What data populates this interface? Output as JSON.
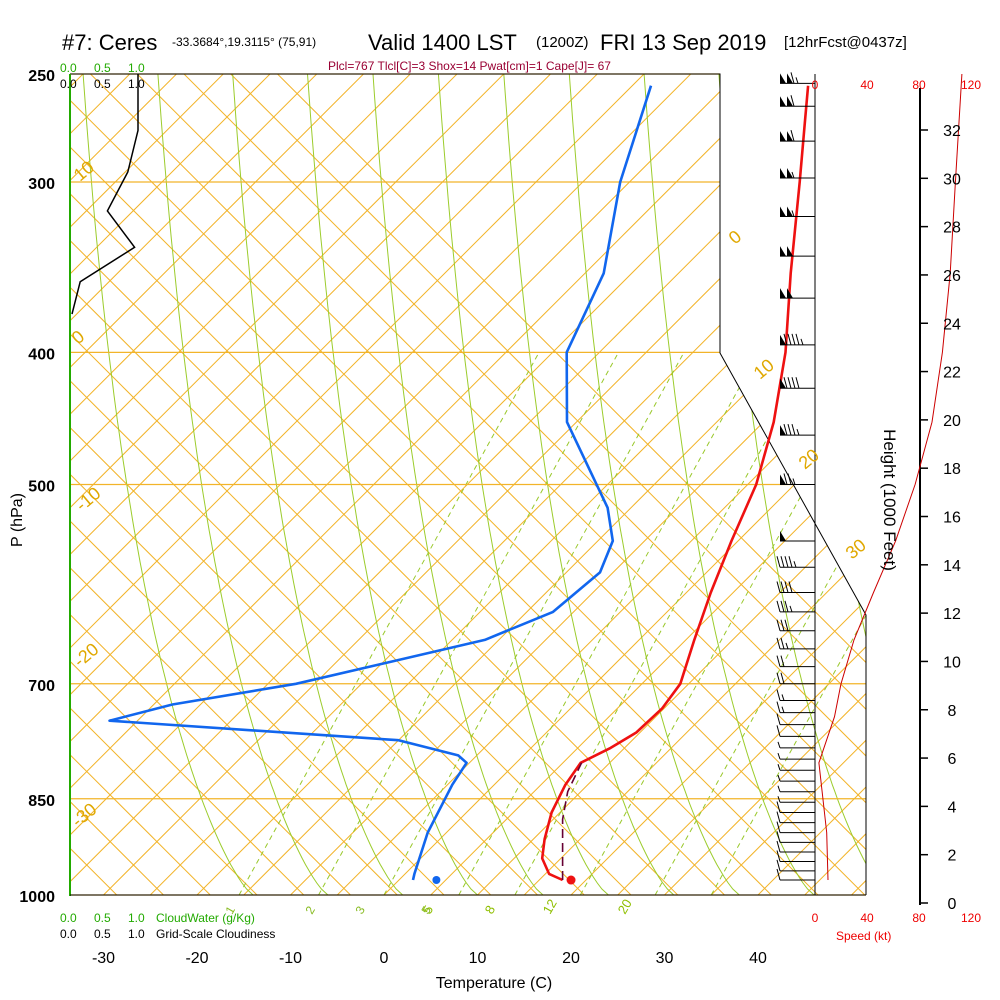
{
  "header": {
    "station": "#7: Ceres",
    "coords": "-33.3684°,19.3115° (75,91)",
    "valid": "Valid 1400 LST",
    "zulu": "(1200Z)",
    "date": "FRI 13 Sep 2019",
    "forecast": "[12hrFcst@0437z]",
    "indices": "Plcl=767 Tlcl[C]=3 Shox=14 Pwat[cm]=1 Cape[J]= 67"
  },
  "chart_data": {
    "type": "line",
    "title": "#7: Ceres   Valid 1400 LST (1200Z) FRI 13 Sep 2019",
    "xlabel": "Temperature (C)",
    "ylabel": "P (hPa)",
    "right_label": "Height (1000 Feet)",
    "xlim": [
      -35,
      46
    ],
    "ylim": [
      1000,
      250
    ],
    "x_scale": "skewed (isotherms tilted 45°)",
    "y_scale": "log pressure",
    "x_ticks": [
      "-30",
      "-20",
      "-10",
      "0",
      "10",
      "20",
      "30",
      "40"
    ],
    "pressure_ticks": [
      "250",
      "300",
      "400",
      "500",
      "700",
      "850",
      "1000"
    ],
    "height_ticks": [
      "0",
      "2",
      "4",
      "6",
      "8",
      "10",
      "12",
      "14",
      "16",
      "18",
      "20",
      "22",
      "24",
      "26",
      "28",
      "30",
      "32"
    ],
    "dry_adiabat_labels": [
      "10",
      "0",
      "-10",
      "-20",
      "-30",
      "0",
      "10",
      "20",
      "30"
    ],
    "moist_adiabat_labels": [
      "5",
      "8",
      "12",
      "20"
    ],
    "mixing_ratio_labels": [
      "1",
      "2",
      "3",
      "5"
    ],
    "cloud_scale": {
      "top": [
        "0.0",
        "0.5",
        "1.0"
      ],
      "top2": [
        "0.0",
        "0.5",
        "1.0"
      ],
      "bottom_green": [
        "0.0",
        "0.5",
        "1.0"
      ],
      "bottom_green_label": "CloudWater (g/Kg)",
      "bottom_black": [
        "0.0",
        "0.5",
        "1.0"
      ],
      "bottom_black_label": "Grid-Scale Cloudiness"
    },
    "speed_scale": {
      "top": [
        "0",
        "40",
        "80",
        "120"
      ],
      "bottom": [
        "0",
        "40",
        "80",
        "120"
      ],
      "label": "Speed (kt)"
    },
    "series": [
      {
        "name": "Temperature",
        "color": "#ee1111",
        "points": [
          {
            "p": 975,
            "t": 17.5
          },
          {
            "p": 965,
            "t": 15.4
          },
          {
            "p": 940,
            "t": 13.0
          },
          {
            "p": 910,
            "t": 11.2
          },
          {
            "p": 870,
            "t": 9.1
          },
          {
            "p": 830,
            "t": 7.6
          },
          {
            "p": 800,
            "t": 6.9
          },
          {
            "p": 780,
            "t": 8.5
          },
          {
            "p": 760,
            "t": 9.6
          },
          {
            "p": 730,
            "t": 9.8
          },
          {
            "p": 700,
            "t": 9.1
          },
          {
            "p": 650,
            "t": 5.9
          },
          {
            "p": 600,
            "t": 2.6
          },
          {
            "p": 550,
            "t": -0.7
          },
          {
            "p": 500,
            "t": -4.1
          },
          {
            "p": 450,
            "t": -8.9
          },
          {
            "p": 400,
            "t": -15.1
          },
          {
            "p": 350,
            "t": -23.0
          },
          {
            "p": 300,
            "t": -31.8
          },
          {
            "p": 270,
            "t": -37.9
          },
          {
            "p": 255,
            "t": -41.2
          }
        ]
      },
      {
        "name": "Dewpoint",
        "color": "#1166ee",
        "points": [
          {
            "p": 975,
            "t": 1.5
          },
          {
            "p": 965,
            "t": 1.0
          },
          {
            "p": 900,
            "t": -2.0
          },
          {
            "p": 830,
            "t": -4.5
          },
          {
            "p": 800,
            "t": -5.3
          },
          {
            "p": 790,
            "t": -7.0
          },
          {
            "p": 770,
            "t": -15.0
          },
          {
            "p": 745,
            "t": -48.0
          },
          {
            "p": 725,
            "t": -43.0
          },
          {
            "p": 700,
            "t": -32.0
          },
          {
            "p": 650,
            "t": -16.5
          },
          {
            "p": 620,
            "t": -12.2
          },
          {
            "p": 580,
            "t": -11.4
          },
          {
            "p": 550,
            "t": -13.4
          },
          {
            "p": 520,
            "t": -17.5
          },
          {
            "p": 450,
            "t": -31.0
          },
          {
            "p": 400,
            "t": -38.5
          },
          {
            "p": 350,
            "t": -43.0
          },
          {
            "p": 300,
            "t": -51.0
          },
          {
            "p": 255,
            "t": -58.0
          }
        ]
      },
      {
        "name": "Parcel",
        "color": "#660033",
        "points": [
          {
            "p": 975,
            "t": 17.5
          },
          {
            "p": 930,
            "t": 14.5
          },
          {
            "p": 880,
            "t": 11.0
          },
          {
            "p": 840,
            "t": 8.6
          },
          {
            "p": 800,
            "t": 7.0
          }
        ]
      },
      {
        "name": "Cloudiness",
        "color": "#000000",
        "points": [
          {
            "p": 250,
            "frac": 1.0
          },
          {
            "p": 275,
            "frac": 1.0
          },
          {
            "p": 295,
            "frac": 0.85
          },
          {
            "p": 315,
            "frac": 0.55
          },
          {
            "p": 335,
            "frac": 0.95
          },
          {
            "p": 355,
            "frac": 0.15
          },
          {
            "p": 375,
            "frac": 0.03
          }
        ]
      }
    ],
    "surface_markers": {
      "temperature": {
        "p": 975,
        "t": 18.4,
        "color": "#ee1111"
      },
      "dewpoint": {
        "p": 975,
        "t": 4.0,
        "color": "#1166ee"
      }
    },
    "wind_speed_profile": {
      "color": "#cc0000",
      "points": [
        {
          "p": 975,
          "kt": 10
        },
        {
          "p": 900,
          "kt": 9
        },
        {
          "p": 800,
          "kt": 3
        },
        {
          "p": 740,
          "kt": 15
        },
        {
          "p": 700,
          "kt": 20
        },
        {
          "p": 650,
          "kt": 30
        },
        {
          "p": 600,
          "kt": 45
        },
        {
          "p": 550,
          "kt": 62
        },
        {
          "p": 500,
          "kt": 77
        },
        {
          "p": 450,
          "kt": 90
        },
        {
          "p": 400,
          "kt": 98
        },
        {
          "p": 350,
          "kt": 104
        },
        {
          "p": 300,
          "kt": 108
        },
        {
          "p": 250,
          "kt": 113
        }
      ]
    },
    "wind_barbs": [
      {
        "p": 975,
        "kt": 10
      },
      {
        "p": 960,
        "kt": 10
      },
      {
        "p": 945,
        "kt": 10
      },
      {
        "p": 930,
        "kt": 10
      },
      {
        "p": 915,
        "kt": 10
      },
      {
        "p": 900,
        "kt": 10
      },
      {
        "p": 885,
        "kt": 10
      },
      {
        "p": 870,
        "kt": 10
      },
      {
        "p": 855,
        "kt": 5
      },
      {
        "p": 840,
        "kt": 5
      },
      {
        "p": 825,
        "kt": 5
      },
      {
        "p": 810,
        "kt": 5
      },
      {
        "p": 795,
        "kt": 5
      },
      {
        "p": 780,
        "kt": 5
      },
      {
        "p": 765,
        "kt": 10
      },
      {
        "p": 750,
        "kt": 10
      },
      {
        "p": 735,
        "kt": 15
      },
      {
        "p": 720,
        "kt": 15
      },
      {
        "p": 700,
        "kt": 20
      },
      {
        "p": 680,
        "kt": 20
      },
      {
        "p": 660,
        "kt": 25
      },
      {
        "p": 640,
        "kt": 30
      },
      {
        "p": 620,
        "kt": 35
      },
      {
        "p": 600,
        "kt": 40
      },
      {
        "p": 575,
        "kt": 45
      },
      {
        "p": 550,
        "kt": 50
      },
      {
        "p": 500,
        "kt": 75
      },
      {
        "p": 460,
        "kt": 85
      },
      {
        "p": 425,
        "kt": 90
      },
      {
        "p": 395,
        "kt": 95
      },
      {
        "p": 365,
        "kt": 100
      },
      {
        "p": 340,
        "kt": 100
      },
      {
        "p": 318,
        "kt": 105
      },
      {
        "p": 298,
        "kt": 105
      },
      {
        "p": 280,
        "kt": 110
      },
      {
        "p": 264,
        "kt": 110
      },
      {
        "p": 254,
        "kt": 115
      }
    ],
    "legend": "none",
    "grid": true
  }
}
